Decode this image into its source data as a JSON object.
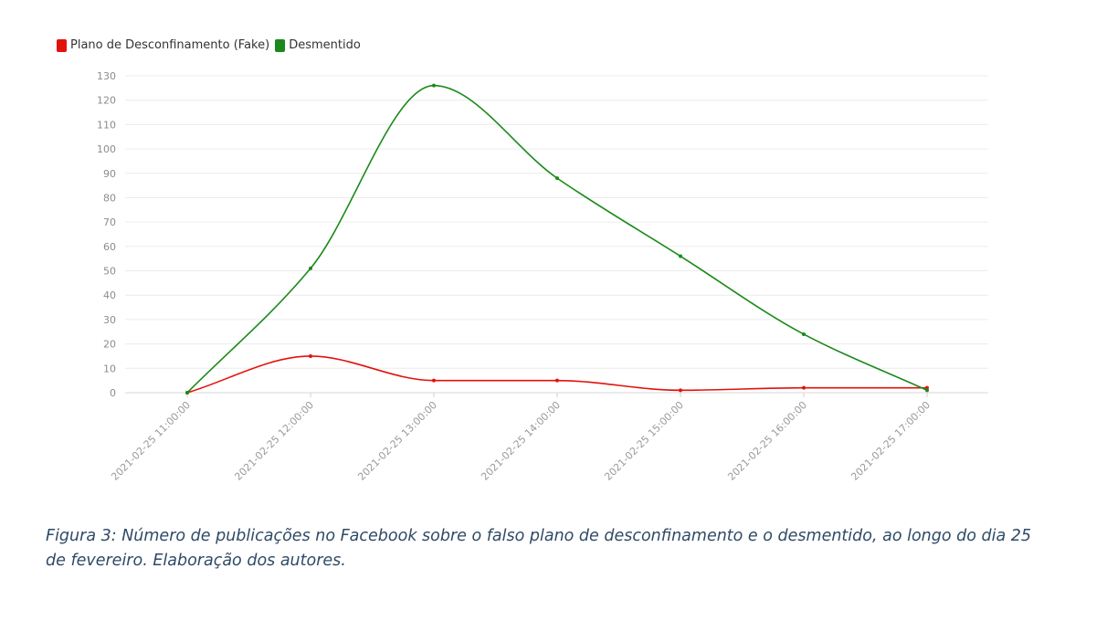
{
  "chart_data": {
    "type": "line",
    "x": [
      "2021-02-25 11:00:00",
      "2021-02-25 12:00:00",
      "2021-02-25 13:00:00",
      "2021-02-25 14:00:00",
      "2021-02-25 15:00:00",
      "2021-02-25 16:00:00",
      "2021-02-25 17:00:00"
    ],
    "series": [
      {
        "name": "Plano de Desconfinamento (Fake)",
        "color": "#e3120b",
        "values": [
          0,
          15,
          5,
          5,
          1,
          2,
          2
        ]
      },
      {
        "name": "Desmentido",
        "color": "#1a8a1a",
        "values": [
          0,
          51,
          126,
          88,
          56,
          24,
          1
        ]
      }
    ],
    "ylim": [
      0,
      130
    ],
    "yticks": [
      0,
      10,
      20,
      30,
      40,
      50,
      60,
      70,
      80,
      90,
      100,
      110,
      120,
      130
    ],
    "grid": true,
    "smooth": true,
    "legend_position": "top-left"
  },
  "caption": "Figura 3: Número de publicações no Facebook sobre o falso plano de desconfinamento e o desmentido, ao longo do dia 25 de fevereiro. Elaboração dos autores."
}
